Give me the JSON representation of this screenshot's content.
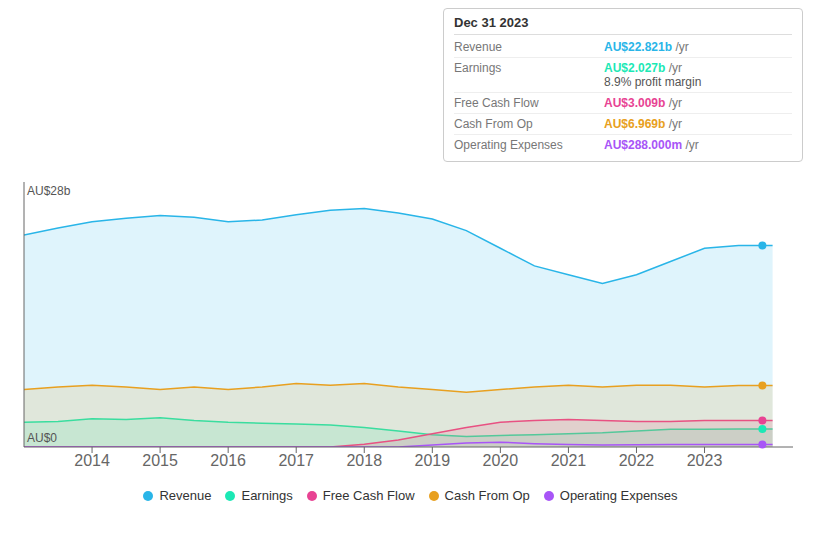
{
  "chart_data": {
    "type": "area",
    "xlim": [
      2013.0,
      2024.3
    ],
    "xticks": [
      2014,
      2015,
      2016,
      2017,
      2018,
      2019,
      2020,
      2021,
      2022,
      2023
    ],
    "ylim": [
      0,
      30
    ],
    "yticks": [
      0,
      7,
      14,
      21,
      28
    ],
    "grid": true,
    "legend": "bottom",
    "tick_labels": "x",
    "annotations": [
      {
        "text": "AU$28b",
        "y": 28
      },
      {
        "text": "AU$0",
        "y": 0
      }
    ],
    "x": [
      2013.0,
      2013.5,
      2014.0,
      2014.5,
      2015.0,
      2015.5,
      2016.0,
      2016.5,
      2017.0,
      2017.5,
      2018.0,
      2018.5,
      2019.0,
      2019.5,
      2020.0,
      2020.5,
      2021.0,
      2021.5,
      2022.0,
      2022.5,
      2023.0,
      2023.5,
      2024.0
    ],
    "series": [
      {
        "name": "Revenue",
        "color": "#29b5e8",
        "type": "area",
        "values": [
          24.0,
          24.8,
          25.5,
          25.9,
          26.2,
          26.0,
          25.5,
          25.7,
          26.3,
          26.8,
          27.0,
          26.5,
          25.8,
          24.5,
          22.5,
          20.5,
          19.5,
          18.5,
          19.5,
          21.0,
          22.5,
          22.821,
          22.821
        ],
        "end_point": {
          "x": 2023.85,
          "y": 22.821
        }
      },
      {
        "name": "Earnings",
        "color": "#1ce8b5",
        "type": "area",
        "values": [
          2.8,
          2.9,
          3.2,
          3.1,
          3.3,
          3.0,
          2.8,
          2.7,
          2.6,
          2.5,
          2.2,
          1.8,
          1.4,
          1.2,
          1.3,
          1.4,
          1.5,
          1.6,
          1.8,
          2.0,
          2.0,
          2.027,
          2.027
        ],
        "end_point": {
          "x": 2023.85,
          "y": 2.027
        }
      },
      {
        "name": "Free Cash Flow",
        "color": "#e84393",
        "type": "area",
        "values": [
          0.0,
          0.0,
          0.0,
          0.0,
          0.0,
          0.0,
          0.0,
          0.0,
          0.0,
          0.0,
          0.3,
          0.8,
          1.5,
          2.2,
          2.8,
          3.0,
          3.1,
          3.0,
          2.9,
          2.9,
          3.0,
          3.009,
          3.009
        ],
        "end_point": {
          "x": 2023.85,
          "y": 3.009
        }
      },
      {
        "name": "Cash From Op",
        "color": "#e8a020",
        "type": "area",
        "values": [
          6.5,
          6.8,
          7.0,
          6.8,
          6.5,
          6.8,
          6.5,
          6.8,
          7.2,
          7.0,
          7.2,
          6.8,
          6.5,
          6.2,
          6.5,
          6.8,
          7.0,
          6.8,
          7.0,
          7.0,
          6.8,
          6.969,
          6.969
        ],
        "end_point": {
          "x": 2023.85,
          "y": 6.969
        }
      },
      {
        "name": "Operating Expenses",
        "color": "#a855f7",
        "type": "line",
        "values": [
          0.0,
          0.0,
          0.0,
          0.0,
          0.0,
          0.0,
          0.0,
          0.0,
          0.0,
          0.0,
          0.0,
          0.0,
          0.22,
          0.45,
          0.55,
          0.38,
          0.28,
          0.24,
          0.25,
          0.27,
          0.28,
          0.288,
          0.288
        ],
        "end_point": {
          "x": 2023.85,
          "y": 0.288
        }
      }
    ],
    "infobox": {
      "title": "Dec 31 2023",
      "rows": [
        {
          "label": "Revenue",
          "value": "AU$22.821b",
          "suffix": " /yr"
        },
        {
          "label": "Earnings",
          "value": "AU$2.027b",
          "suffix": " /yr",
          "subrow": "8.9% profit margin"
        },
        {
          "label": "Free Cash Flow",
          "value": "AU$3.009b",
          "suffix": " /yr"
        },
        {
          "label": "Cash From Op",
          "value": "AU$6.969b",
          "suffix": " /yr"
        },
        {
          "label": "Operating Expenses",
          "value": "AU$288.000m",
          "suffix": " /yr"
        }
      ]
    }
  }
}
